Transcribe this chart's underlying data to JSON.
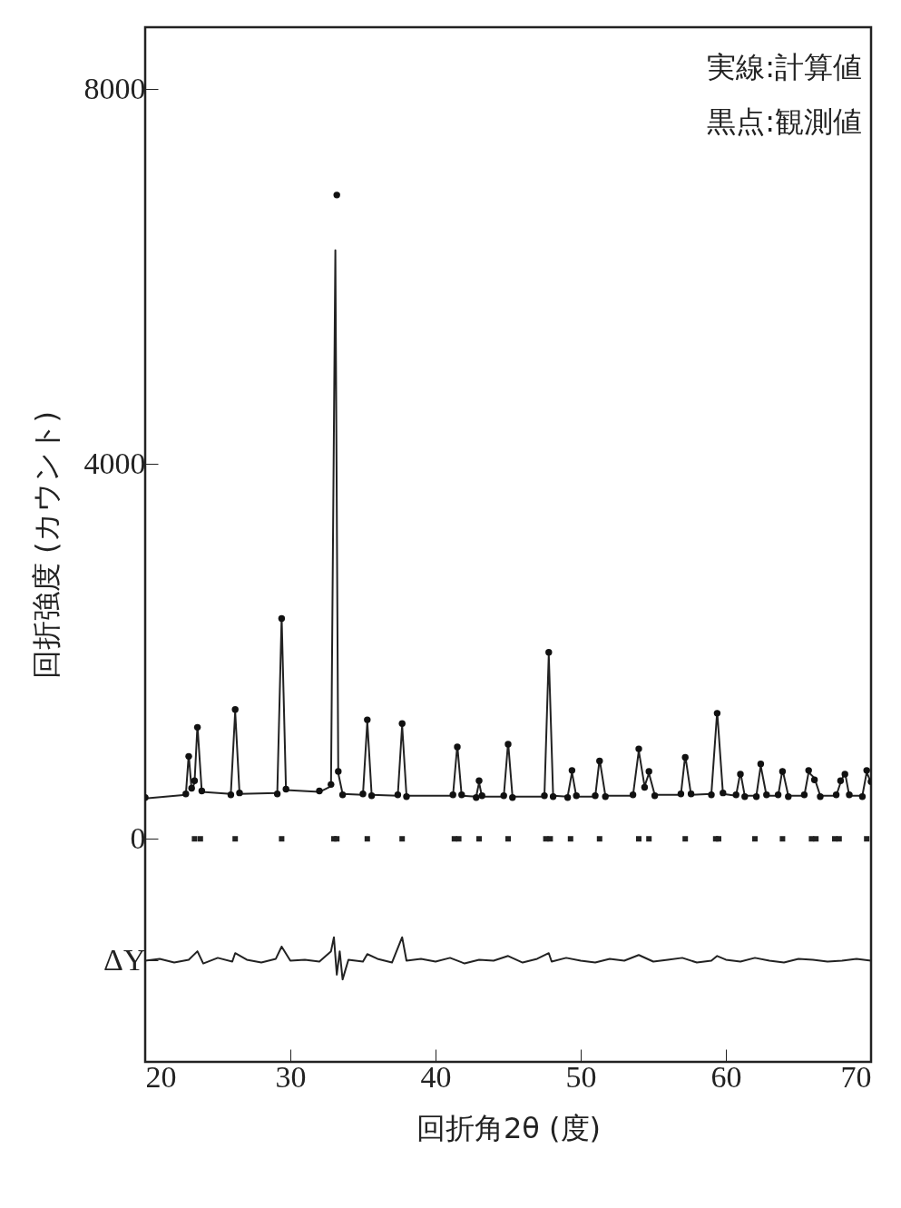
{
  "chart_data": {
    "type": "line",
    "xlabel": "回折角2θ (度)",
    "ylabel": "回折強度 (カウント)",
    "annotations": [
      "実線:計算値",
      "黒点:観測値"
    ],
    "xlim": [
      20,
      70
    ],
    "xticks": [
      20,
      30,
      40,
      50,
      60,
      70
    ],
    "ylim": [
      -2380,
      8660
    ],
    "yticks": [
      {
        "value": -1300,
        "label": "ΔY"
      },
      0,
      4000,
      8000
    ],
    "grid": false,
    "series": [
      {
        "color": "#222222",
        "line_style": "solid",
        "x": [
          20,
          22.8,
          23.0,
          23.2,
          23.4,
          23.6,
          23.9,
          25.9,
          26.2,
          26.5,
          29.1,
          29.4,
          29.7,
          32.0,
          32.8,
          33.1,
          33.3,
          33.6,
          35.0,
          35.3,
          35.6,
          37.4,
          37.7,
          38.0,
          41.2,
          41.5,
          41.8,
          42.8,
          43.0,
          43.2,
          44.7,
          45.0,
          45.3,
          47.5,
          47.8,
          48.1,
          49.1,
          49.4,
          49.7,
          51.0,
          51.3,
          51.7,
          53.6,
          54.0,
          54.4,
          54.7,
          55.1,
          56.9,
          57.2,
          57.6,
          59.0,
          59.4,
          59.8,
          60.7,
          61.0,
          61.3,
          62.1,
          62.4,
          62.8,
          63.6,
          63.9,
          64.3,
          65.4,
          65.7,
          66.1,
          66.5,
          67.6,
          67.9,
          68.2,
          68.5,
          69.4,
          69.7,
          70
        ],
        "values": [
          430,
          470,
          900,
          520,
          600,
          1210,
          500,
          480,
          1360,
          480,
          490,
          2370,
          520,
          500,
          560,
          6280,
          700,
          480,
          470,
          1250,
          470,
          460,
          1210,
          460,
          460,
          1000,
          460,
          450,
          600,
          450,
          450,
          1030,
          450,
          450,
          1970,
          460,
          450,
          710,
          450,
          450,
          850,
          460,
          460,
          940,
          560,
          700,
          470,
          470,
          890,
          470,
          480,
          1360,
          480,
          460,
          710,
          460,
          460,
          780,
          460,
          460,
          740,
          460,
          460,
          710,
          650,
          460,
          460,
          600,
          710,
          460,
          460,
          710,
          600
        ]
      },
      {
        "type": "scatter",
        "color": "#111111",
        "marker": "circle",
        "x": [
          20,
          22.8,
          23.0,
          23.2,
          23.4,
          23.6,
          23.9,
          25.9,
          26.2,
          26.5,
          29.1,
          29.4,
          29.7,
          32.0,
          32.8,
          33.2,
          33.3,
          33.6,
          35.0,
          35.3,
          35.6,
          37.4,
          37.7,
          38.0,
          41.2,
          41.5,
          41.8,
          42.8,
          43.0,
          43.2,
          44.7,
          45.0,
          45.3,
          47.5,
          47.8,
          48.1,
          49.1,
          49.4,
          49.7,
          51.0,
          51.3,
          51.7,
          53.6,
          54.0,
          54.4,
          54.7,
          55.1,
          56.9,
          57.2,
          57.6,
          59.0,
          59.4,
          59.8,
          60.7,
          61.0,
          61.3,
          62.1,
          62.4,
          62.8,
          63.6,
          63.9,
          64.3,
          65.4,
          65.7,
          66.1,
          66.5,
          67.6,
          67.9,
          68.2,
          68.5,
          69.4,
          69.7,
          70
        ],
        "values": [
          440,
          480,
          880,
          540,
          620,
          1190,
          510,
          470,
          1380,
          490,
          480,
          2350,
          530,
          510,
          580,
          6870,
          720,
          470,
          480,
          1270,
          460,
          470,
          1230,
          450,
          470,
          980,
          470,
          440,
          620,
          460,
          460,
          1010,
          440,
          460,
          1990,
          450,
          440,
          730,
          460,
          460,
          830,
          450,
          470,
          960,
          550,
          720,
          460,
          480,
          870,
          480,
          470,
          1340,
          490,
          470,
          690,
          450,
          450,
          800,
          470,
          470,
          720,
          450,
          470,
          730,
          630,
          450,
          470,
          620,
          690,
          470,
          450,
          730,
          610
        ]
      },
      {
        "type": "scatter",
        "color": "#222222",
        "marker": "square",
        "x": [
          23.4,
          23.8,
          26.2,
          29.4,
          33.0,
          33.2,
          35.3,
          37.7,
          41.3,
          41.6,
          43.0,
          45.0,
          47.6,
          47.9,
          49.3,
          51.3,
          54.0,
          54.7,
          57.2,
          59.3,
          59.5,
          62.0,
          63.9,
          65.9,
          66.2,
          67.5,
          67.8,
          69.7
        ],
        "values": [
          0,
          0,
          0,
          0,
          0,
          0,
          0,
          0,
          0,
          0,
          0,
          0,
          0,
          0,
          0,
          0,
          0,
          0,
          0,
          0,
          0,
          0,
          0,
          0,
          0,
          0,
          0,
          0
        ]
      },
      {
        "color": "#222222",
        "line_style": "solid",
        "x": [
          20,
          21,
          22,
          23,
          23.6,
          24,
          25,
          26,
          26.2,
          27,
          28,
          29,
          29.4,
          30,
          31,
          32,
          32.8,
          33.0,
          33.2,
          33.4,
          33.6,
          34,
          35,
          35.3,
          36,
          37,
          37.7,
          38,
          39,
          40,
          41,
          42,
          43,
          44,
          45,
          46,
          47,
          47.8,
          48,
          49,
          50,
          51,
          52,
          53,
          54,
          55,
          56,
          57,
          58,
          59,
          59.4,
          60,
          61,
          62,
          63,
          64,
          65,
          66,
          67,
          68,
          69,
          70
        ],
        "values": [
          -1300,
          -1280,
          -1320,
          -1290,
          -1200,
          -1330,
          -1270,
          -1310,
          -1220,
          -1290,
          -1320,
          -1280,
          -1150,
          -1300,
          -1290,
          -1310,
          -1200,
          -1050,
          -1450,
          -1200,
          -1500,
          -1290,
          -1310,
          -1230,
          -1280,
          -1320,
          -1050,
          -1300,
          -1280,
          -1310,
          -1270,
          -1330,
          -1290,
          -1300,
          -1250,
          -1320,
          -1280,
          -1220,
          -1310,
          -1270,
          -1300,
          -1320,
          -1280,
          -1300,
          -1240,
          -1310,
          -1290,
          -1270,
          -1320,
          -1300,
          -1250,
          -1290,
          -1310,
          -1270,
          -1300,
          -1320,
          -1280,
          -1290,
          -1310,
          -1300,
          -1280,
          -1300
        ]
      }
    ]
  }
}
